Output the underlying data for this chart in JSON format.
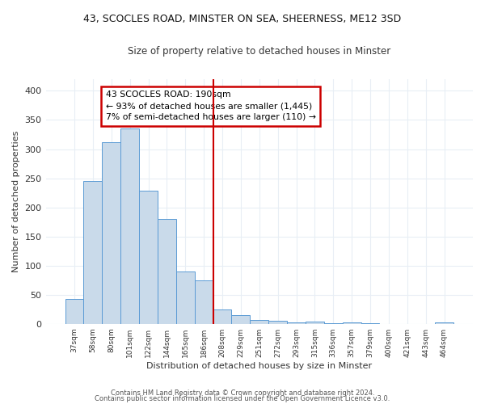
{
  "title": "43, SCOCLES ROAD, MINSTER ON SEA, SHEERNESS, ME12 3SD",
  "subtitle": "Size of property relative to detached houses in Minster",
  "xlabel": "Distribution of detached houses by size in Minster",
  "ylabel": "Number of detached properties",
  "bar_labels": [
    "37sqm",
    "58sqm",
    "80sqm",
    "101sqm",
    "122sqm",
    "144sqm",
    "165sqm",
    "186sqm",
    "208sqm",
    "229sqm",
    "251sqm",
    "272sqm",
    "293sqm",
    "315sqm",
    "336sqm",
    "357sqm",
    "379sqm",
    "400sqm",
    "421sqm",
    "443sqm",
    "464sqm"
  ],
  "bar_values": [
    43,
    245,
    312,
    335,
    228,
    180,
    90,
    75,
    25,
    15,
    7,
    5,
    2,
    4,
    1,
    3,
    1,
    0,
    0,
    0,
    2
  ],
  "bar_color": "#c9daea",
  "bar_edge_color": "#5b9bd5",
  "vline_x_index": 7.5,
  "vline_color": "#cc0000",
  "annotation_line1": "43 SCOCLES ROAD: 190sqm",
  "annotation_line2": "← 93% of detached houses are smaller (1,445)",
  "annotation_line3": "7% of semi-detached houses are larger (110) →",
  "annotation_box_color": "#cc0000",
  "footer1": "Contains HM Land Registry data © Crown copyright and database right 2024.",
  "footer2": "Contains public sector information licensed under the Open Government Licence v3.0.",
  "ylim": [
    0,
    420
  ],
  "background_color": "#ffffff",
  "plot_bg_color": "#ffffff",
  "grid_color": "#e8eef5"
}
